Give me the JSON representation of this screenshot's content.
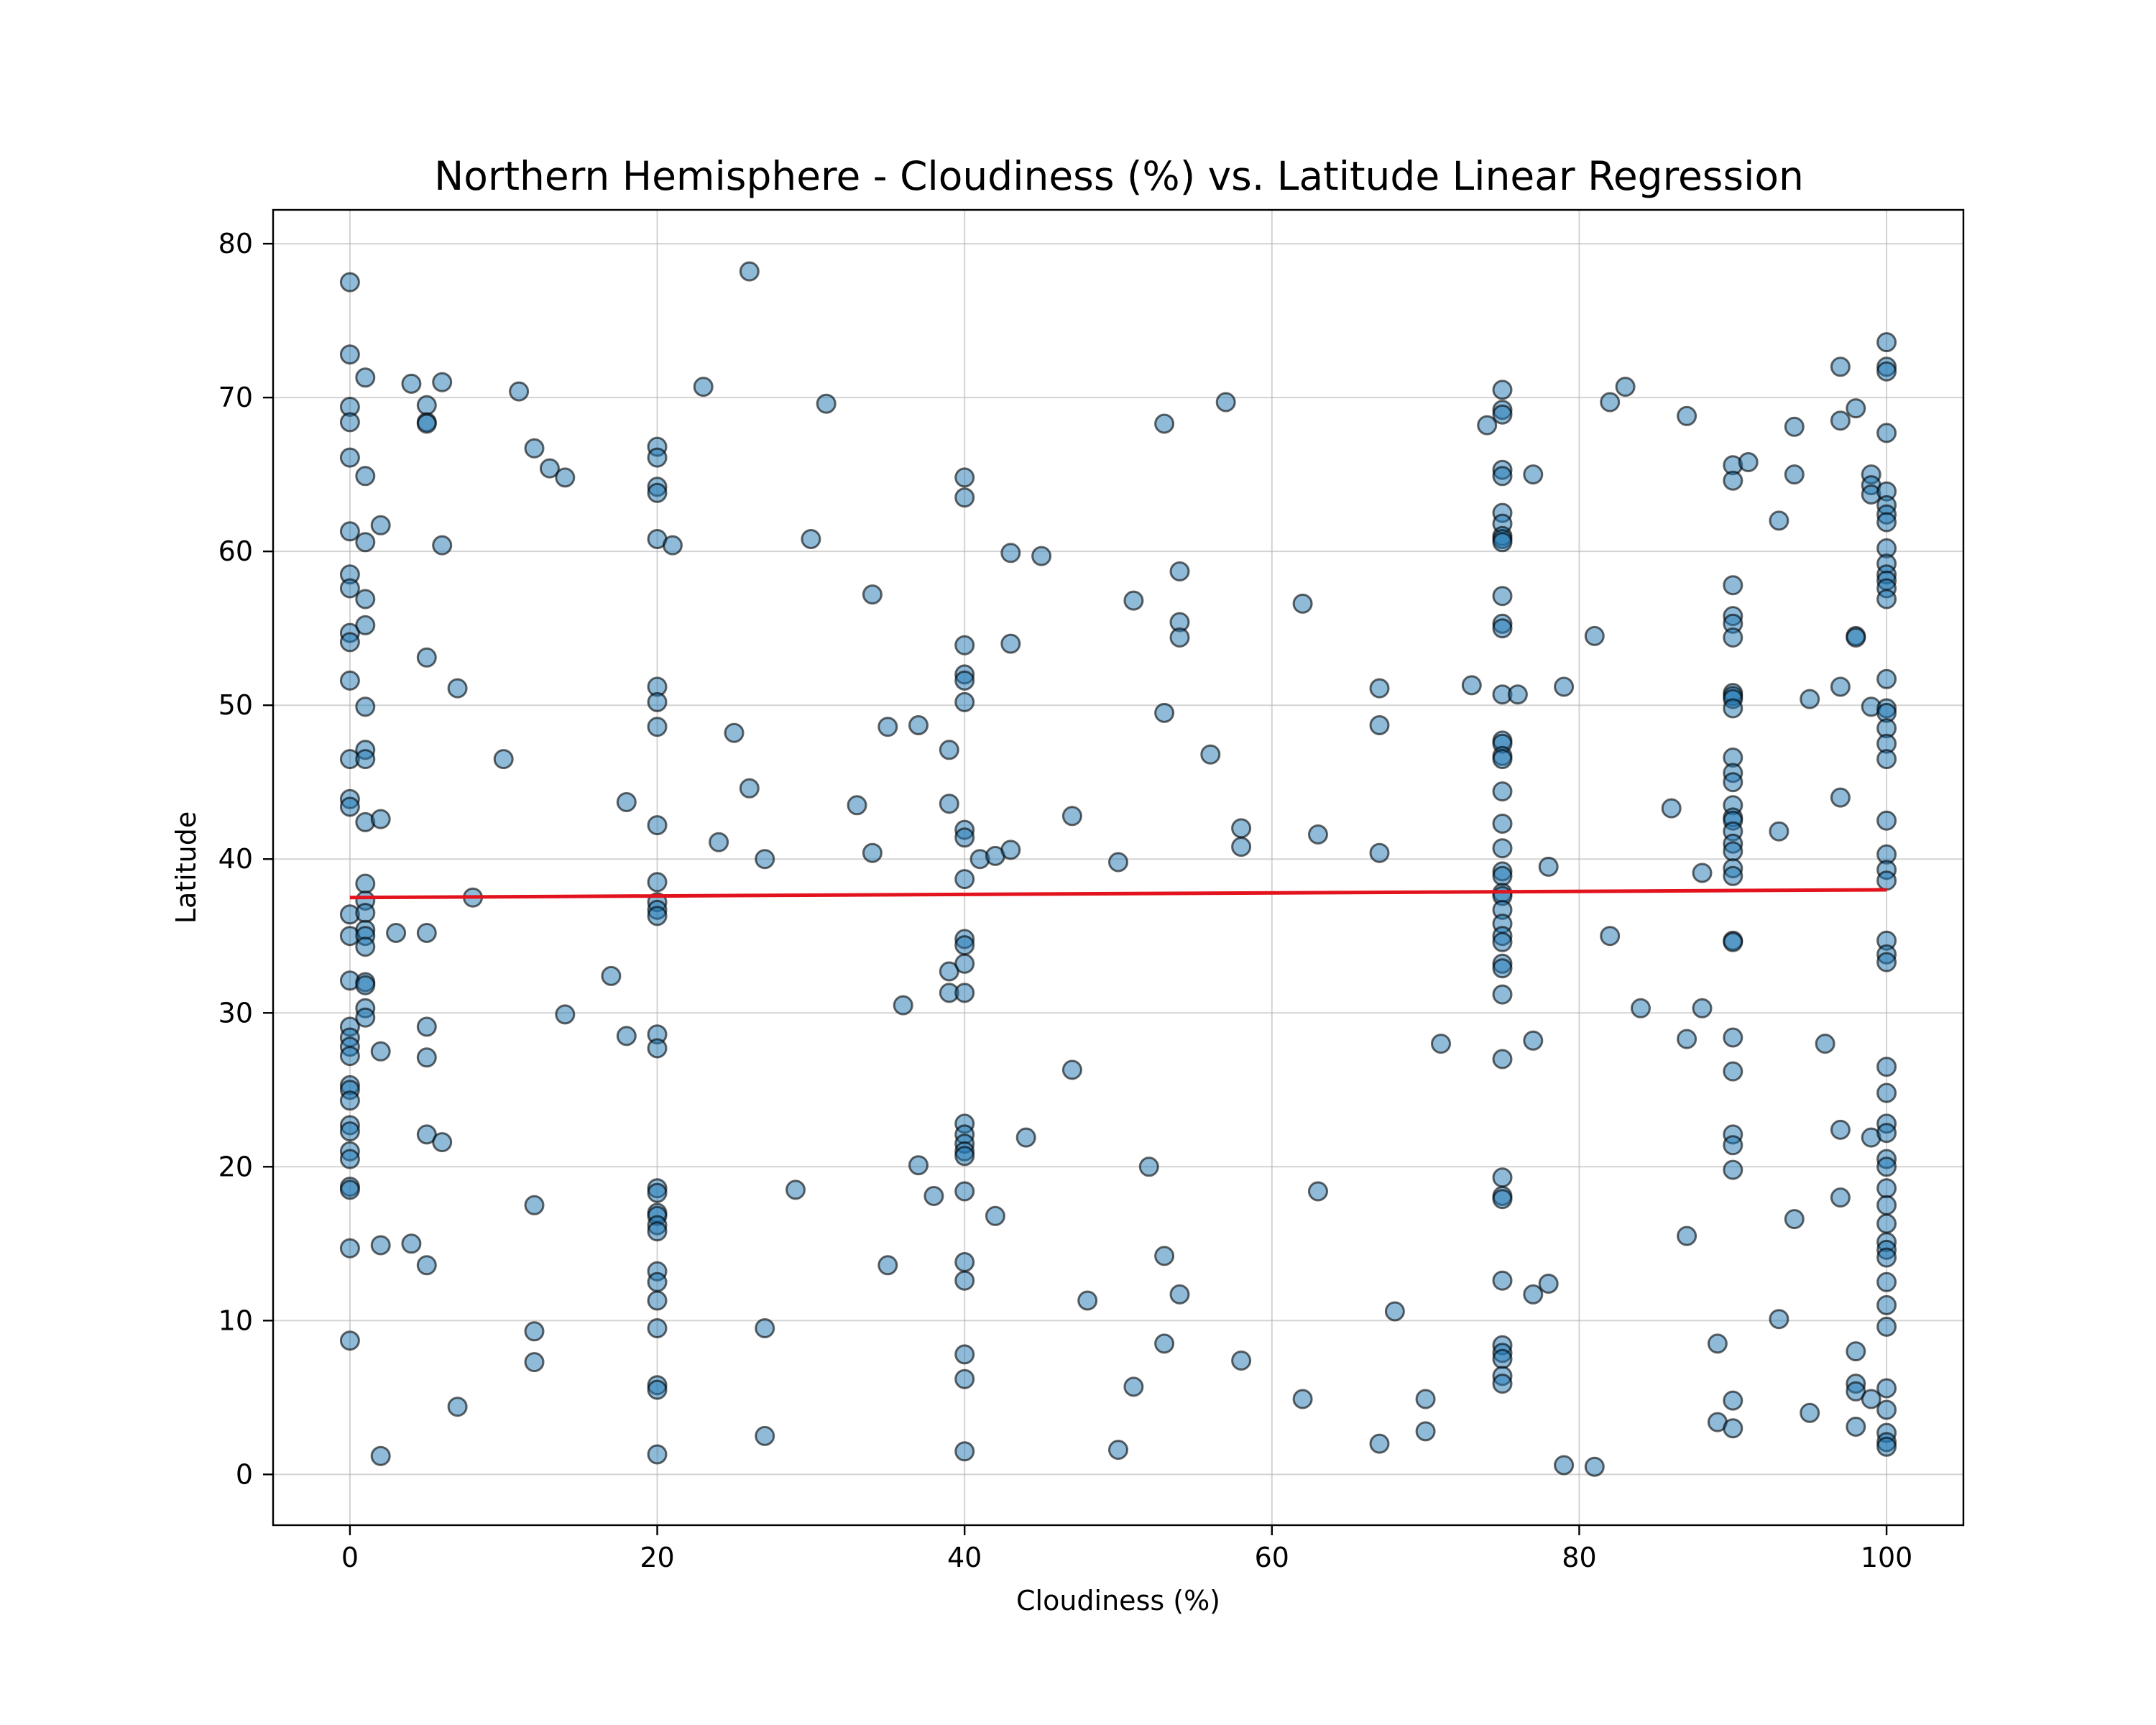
{
  "colors": {
    "point_fill": "#1f77b4",
    "regression": "#e3131d",
    "background": "#ffffff"
  },
  "chart_data": {
    "type": "scatter",
    "title": "Northern Hemisphere - Cloudiness (%) vs. Latitude Linear Regression",
    "xlabel": "Cloudiness (%)",
    "ylabel": "Latitude",
    "xlim": [
      -5,
      105
    ],
    "ylim": [
      -3.3,
      82.2
    ],
    "xticks": [
      0,
      20,
      40,
      60,
      80,
      100
    ],
    "yticks": [
      0,
      10,
      20,
      30,
      40,
      50,
      60,
      70,
      80
    ],
    "grid": true,
    "regression": {
      "x": [
        0,
        100
      ],
      "y": [
        37.5,
        38.0
      ]
    },
    "points": [
      [
        0,
        77.5
      ],
      [
        0,
        72.8
      ],
      [
        0,
        69.4
      ],
      [
        0,
        68.4
      ],
      [
        0,
        66.1
      ],
      [
        0,
        61.3
      ],
      [
        0,
        58.5
      ],
      [
        0,
        57.6
      ],
      [
        0,
        54.7
      ],
      [
        0,
        54.1
      ],
      [
        0,
        51.6
      ],
      [
        0,
        46.5
      ],
      [
        0,
        43.9
      ],
      [
        0,
        43.4
      ],
      [
        0,
        36.4
      ],
      [
        0,
        35.0
      ],
      [
        0,
        32.1
      ],
      [
        0,
        29.1
      ],
      [
        0,
        28.4
      ],
      [
        0,
        27.8
      ],
      [
        0,
        27.2
      ],
      [
        0,
        25.3
      ],
      [
        0,
        25.0
      ],
      [
        0,
        24.3
      ],
      [
        0,
        22.7
      ],
      [
        0,
        22.3
      ],
      [
        0,
        21.0
      ],
      [
        0,
        20.5
      ],
      [
        0,
        18.7
      ],
      [
        0,
        18.5
      ],
      [
        0,
        14.7
      ],
      [
        0,
        8.7
      ],
      [
        1,
        71.3
      ],
      [
        1,
        64.9
      ],
      [
        1,
        60.6
      ],
      [
        1,
        56.9
      ],
      [
        1,
        55.2
      ],
      [
        1,
        49.9
      ],
      [
        1,
        47.1
      ],
      [
        1,
        46.5
      ],
      [
        1,
        42.4
      ],
      [
        1,
        38.4
      ],
      [
        1,
        37.3
      ],
      [
        1,
        36.5
      ],
      [
        1,
        35.4
      ],
      [
        1,
        35.0
      ],
      [
        1,
        34.3
      ],
      [
        1,
        32.0
      ],
      [
        1,
        31.8
      ],
      [
        1,
        30.3
      ],
      [
        1,
        29.7
      ],
      [
        2,
        61.7
      ],
      [
        2,
        42.6
      ],
      [
        2,
        27.5
      ],
      [
        2,
        14.9
      ],
      [
        2,
        1.2
      ],
      [
        3,
        35.2
      ],
      [
        4,
        70.9
      ],
      [
        4,
        15.0
      ],
      [
        5,
        69.5
      ],
      [
        5,
        68.4
      ],
      [
        5,
        68.3
      ],
      [
        5,
        53.1
      ],
      [
        5,
        35.2
      ],
      [
        5,
        29.1
      ],
      [
        5,
        27.1
      ],
      [
        5,
        22.1
      ],
      [
        5,
        13.6
      ],
      [
        6,
        71.0
      ],
      [
        6,
        60.4
      ],
      [
        6,
        21.6
      ],
      [
        7,
        51.1
      ],
      [
        7,
        4.4
      ],
      [
        8,
        37.5
      ],
      [
        10,
        46.5
      ],
      [
        11,
        70.4
      ],
      [
        12,
        66.7
      ],
      [
        12,
        17.5
      ],
      [
        12,
        9.3
      ],
      [
        12,
        7.3
      ],
      [
        13,
        65.4
      ],
      [
        14,
        64.8
      ],
      [
        14,
        29.9
      ],
      [
        17,
        32.4
      ],
      [
        18,
        43.7
      ],
      [
        18,
        28.5
      ],
      [
        20,
        66.8
      ],
      [
        20,
        66.1
      ],
      [
        20,
        64.2
      ],
      [
        20,
        63.8
      ],
      [
        20,
        60.8
      ],
      [
        20,
        51.2
      ],
      [
        20,
        50.2
      ],
      [
        20,
        48.6
      ],
      [
        20,
        42.2
      ],
      [
        20,
        38.5
      ],
      [
        20,
        37.2
      ],
      [
        20,
        36.7
      ],
      [
        20,
        36.3
      ],
      [
        20,
        28.6
      ],
      [
        20,
        27.7
      ],
      [
        20,
        18.6
      ],
      [
        20,
        18.3
      ],
      [
        20,
        17.0
      ],
      [
        20,
        16.8
      ],
      [
        20,
        16.2
      ],
      [
        20,
        15.8
      ],
      [
        20,
        13.2
      ],
      [
        20,
        12.5
      ],
      [
        20,
        11.3
      ],
      [
        20,
        9.5
      ],
      [
        20,
        5.8
      ],
      [
        20,
        5.5
      ],
      [
        20,
        1.3
      ],
      [
        21,
        60.4
      ],
      [
        23,
        70.7
      ],
      [
        24,
        41.1
      ],
      [
        25,
        48.2
      ],
      [
        26,
        78.2
      ],
      [
        26,
        44.6
      ],
      [
        27,
        40.0
      ],
      [
        27,
        9.5
      ],
      [
        27,
        2.5
      ],
      [
        29,
        18.5
      ],
      [
        30,
        60.8
      ],
      [
        31,
        69.6
      ],
      [
        33,
        43.5
      ],
      [
        34,
        57.2
      ],
      [
        34,
        40.4
      ],
      [
        35,
        48.6
      ],
      [
        35,
        13.6
      ],
      [
        36,
        30.5
      ],
      [
        37,
        48.7
      ],
      [
        37,
        20.1
      ],
      [
        38,
        18.1
      ],
      [
        39,
        47.1
      ],
      [
        39,
        43.6
      ],
      [
        39,
        32.7
      ],
      [
        39,
        31.3
      ],
      [
        40,
        64.8
      ],
      [
        40,
        63.5
      ],
      [
        40,
        53.9
      ],
      [
        40,
        52.0
      ],
      [
        40,
        51.6
      ],
      [
        40,
        50.2
      ],
      [
        40,
        41.9
      ],
      [
        40,
        41.4
      ],
      [
        40,
        38.7
      ],
      [
        40,
        34.8
      ],
      [
        40,
        34.4
      ],
      [
        40,
        33.2
      ],
      [
        40,
        31.3
      ],
      [
        40,
        22.8
      ],
      [
        40,
        22.1
      ],
      [
        40,
        21.5
      ],
      [
        40,
        21.0
      ],
      [
        40,
        20.7
      ],
      [
        40,
        18.4
      ],
      [
        40,
        13.8
      ],
      [
        40,
        12.6
      ],
      [
        40,
        7.8
      ],
      [
        40,
        6.2
      ],
      [
        40,
        1.5
      ],
      [
        41,
        40.0
      ],
      [
        42,
        40.2
      ],
      [
        42,
        16.8
      ],
      [
        43,
        59.9
      ],
      [
        43,
        54.0
      ],
      [
        43,
        40.6
      ],
      [
        44,
        21.9
      ],
      [
        45,
        59.7
      ],
      [
        47,
        42.8
      ],
      [
        47,
        26.3
      ],
      [
        48,
        11.3
      ],
      [
        50,
        39.8
      ],
      [
        50,
        1.6
      ],
      [
        51,
        56.8
      ],
      [
        51,
        5.7
      ],
      [
        52,
        20.0
      ],
      [
        53,
        68.3
      ],
      [
        53,
        49.5
      ],
      [
        53,
        14.2
      ],
      [
        53,
        8.5
      ],
      [
        54,
        58.7
      ],
      [
        54,
        55.4
      ],
      [
        54,
        54.4
      ],
      [
        54,
        11.7
      ],
      [
        56,
        46.8
      ],
      [
        57,
        69.7
      ],
      [
        58,
        42.0
      ],
      [
        58,
        40.8
      ],
      [
        58,
        7.4
      ],
      [
        62,
        56.6
      ],
      [
        62,
        4.9
      ],
      [
        63,
        41.6
      ],
      [
        63,
        18.4
      ],
      [
        67,
        51.1
      ],
      [
        67,
        48.7
      ],
      [
        67,
        40.4
      ],
      [
        67,
        2.0
      ],
      [
        68,
        10.6
      ],
      [
        70,
        4.9
      ],
      [
        70,
        2.8
      ],
      [
        71,
        28.0
      ],
      [
        73,
        51.3
      ],
      [
        74,
        68.2
      ],
      [
        75,
        70.5
      ],
      [
        75,
        69.2
      ],
      [
        75,
        68.9
      ],
      [
        75,
        65.3
      ],
      [
        75,
        64.9
      ],
      [
        75,
        62.5
      ],
      [
        75,
        61.8
      ],
      [
        75,
        61.0
      ],
      [
        75,
        60.8
      ],
      [
        75,
        60.6
      ],
      [
        75,
        57.1
      ],
      [
        75,
        55.3
      ],
      [
        75,
        55.0
      ],
      [
        75,
        50.7
      ],
      [
        75,
        47.7
      ],
      [
        75,
        47.5
      ],
      [
        75,
        46.7
      ],
      [
        75,
        46.5
      ],
      [
        75,
        44.4
      ],
      [
        75,
        42.3
      ],
      [
        75,
        40.7
      ],
      [
        75,
        39.2
      ],
      [
        75,
        38.9
      ],
      [
        75,
        37.8
      ],
      [
        75,
        37.6
      ],
      [
        75,
        36.7
      ],
      [
        75,
        35.8
      ],
      [
        75,
        35.0
      ],
      [
        75,
        34.6
      ],
      [
        75,
        33.2
      ],
      [
        75,
        32.9
      ],
      [
        75,
        31.2
      ],
      [
        75,
        27.0
      ],
      [
        75,
        19.3
      ],
      [
        75,
        18.1
      ],
      [
        75,
        17.9
      ],
      [
        75,
        12.6
      ],
      [
        75,
        8.4
      ],
      [
        75,
        7.9
      ],
      [
        75,
        7.5
      ],
      [
        75,
        6.4
      ],
      [
        75,
        5.9
      ],
      [
        76,
        50.7
      ],
      [
        77,
        65.0
      ],
      [
        77,
        28.2
      ],
      [
        77,
        11.7
      ],
      [
        78,
        39.5
      ],
      [
        78,
        12.4
      ],
      [
        79,
        51.2
      ],
      [
        79,
        0.6
      ],
      [
        81,
        54.5
      ],
      [
        81,
        0.5
      ],
      [
        82,
        69.7
      ],
      [
        82,
        35.0
      ],
      [
        83,
        70.7
      ],
      [
        84,
        30.3
      ],
      [
        86,
        43.3
      ],
      [
        87,
        68.8
      ],
      [
        87,
        28.3
      ],
      [
        87,
        15.5
      ],
      [
        88,
        39.1
      ],
      [
        88,
        30.3
      ],
      [
        89,
        8.5
      ],
      [
        89,
        3.4
      ],
      [
        90,
        65.6
      ],
      [
        90,
        64.6
      ],
      [
        90,
        57.8
      ],
      [
        90,
        55.8
      ],
      [
        90,
        55.3
      ],
      [
        90,
        54.4
      ],
      [
        90,
        50.8
      ],
      [
        90,
        50.6
      ],
      [
        90,
        50.4
      ],
      [
        90,
        49.8
      ],
      [
        90,
        46.6
      ],
      [
        90,
        45.6
      ],
      [
        90,
        45.0
      ],
      [
        90,
        43.5
      ],
      [
        90,
        42.7
      ],
      [
        90,
        42.5
      ],
      [
        90,
        41.8
      ],
      [
        90,
        41.0
      ],
      [
        90,
        40.5
      ],
      [
        90,
        39.4
      ],
      [
        90,
        38.9
      ],
      [
        90,
        34.7
      ],
      [
        90,
        34.6
      ],
      [
        90,
        28.4
      ],
      [
        90,
        26.2
      ],
      [
        90,
        22.1
      ],
      [
        90,
        21.4
      ],
      [
        90,
        19.8
      ],
      [
        90,
        4.8
      ],
      [
        90,
        3.0
      ],
      [
        91,
        65.8
      ],
      [
        93,
        62.0
      ],
      [
        93,
        41.8
      ],
      [
        93,
        10.1
      ],
      [
        94,
        68.1
      ],
      [
        94,
        65.0
      ],
      [
        94,
        16.6
      ],
      [
        95,
        50.4
      ],
      [
        95,
        4.0
      ],
      [
        96,
        28.0
      ],
      [
        97,
        72.0
      ],
      [
        97,
        68.5
      ],
      [
        97,
        51.2
      ],
      [
        97,
        44.0
      ],
      [
        97,
        22.4
      ],
      [
        97,
        18.0
      ],
      [
        98,
        69.3
      ],
      [
        98,
        54.5
      ],
      [
        98,
        54.4
      ],
      [
        98,
        8.0
      ],
      [
        98,
        5.9
      ],
      [
        98,
        5.4
      ],
      [
        98,
        3.1
      ],
      [
        99,
        65.0
      ],
      [
        99,
        64.3
      ],
      [
        99,
        63.7
      ],
      [
        99,
        49.9
      ],
      [
        99,
        21.9
      ],
      [
        99,
        4.9
      ],
      [
        100,
        73.6
      ],
      [
        100,
        72.0
      ],
      [
        100,
        71.7
      ],
      [
        100,
        67.7
      ],
      [
        100,
        63.9
      ],
      [
        100,
        63.0
      ],
      [
        100,
        62.4
      ],
      [
        100,
        61.9
      ],
      [
        100,
        60.2
      ],
      [
        100,
        59.2
      ],
      [
        100,
        58.5
      ],
      [
        100,
        58.1
      ],
      [
        100,
        57.6
      ],
      [
        100,
        56.9
      ],
      [
        100,
        51.7
      ],
      [
        100,
        49.8
      ],
      [
        100,
        49.5
      ],
      [
        100,
        48.5
      ],
      [
        100,
        47.5
      ],
      [
        100,
        46.5
      ],
      [
        100,
        42.5
      ],
      [
        100,
        40.3
      ],
      [
        100,
        39.3
      ],
      [
        100,
        38.6
      ],
      [
        100,
        34.7
      ],
      [
        100,
        33.8
      ],
      [
        100,
        33.3
      ],
      [
        100,
        26.5
      ],
      [
        100,
        24.8
      ],
      [
        100,
        22.8
      ],
      [
        100,
        22.2
      ],
      [
        100,
        20.5
      ],
      [
        100,
        20.0
      ],
      [
        100,
        18.6
      ],
      [
        100,
        17.5
      ],
      [
        100,
        16.3
      ],
      [
        100,
        15.1
      ],
      [
        100,
        14.6
      ],
      [
        100,
        14.1
      ],
      [
        100,
        12.5
      ],
      [
        100,
        11.0
      ],
      [
        100,
        9.6
      ],
      [
        100,
        5.6
      ],
      [
        100,
        4.2
      ],
      [
        100,
        2.7
      ],
      [
        100,
        2.1
      ],
      [
        100,
        1.8
      ]
    ]
  }
}
